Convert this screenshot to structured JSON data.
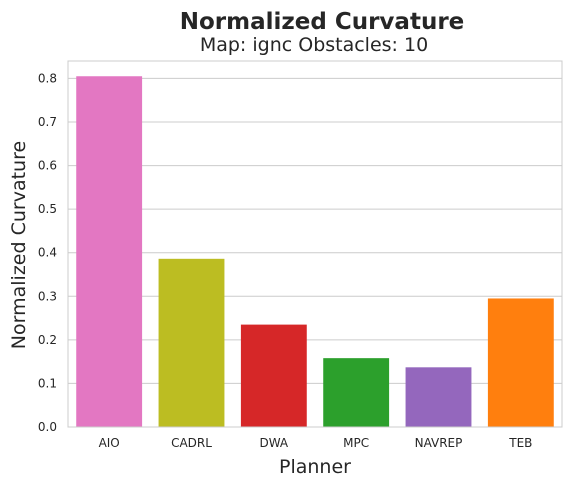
{
  "chart_data": {
    "type": "bar",
    "title": "Normalized Curvature",
    "subtitle": "Map: ignc Obstacles: 10",
    "xlabel": "Planner",
    "ylabel": "Normalized Curvature",
    "categories": [
      "AIO",
      "CADRL",
      "DWA",
      "MPC",
      "NAVREP",
      "TEB"
    ],
    "values": [
      0.805,
      0.386,
      0.235,
      0.158,
      0.137,
      0.295
    ],
    "colors": [
      "#e377c2",
      "#bcbd22",
      "#d62728",
      "#2ca02c",
      "#9467bd",
      "#ff7f0e"
    ],
    "ylim": [
      0,
      0.84
    ],
    "yticks": [
      "0.0",
      "0.1",
      "0.2",
      "0.3",
      "0.4",
      "0.5",
      "0.6",
      "0.7",
      "0.8"
    ],
    "grid": "horizontal",
    "legend": "none"
  }
}
